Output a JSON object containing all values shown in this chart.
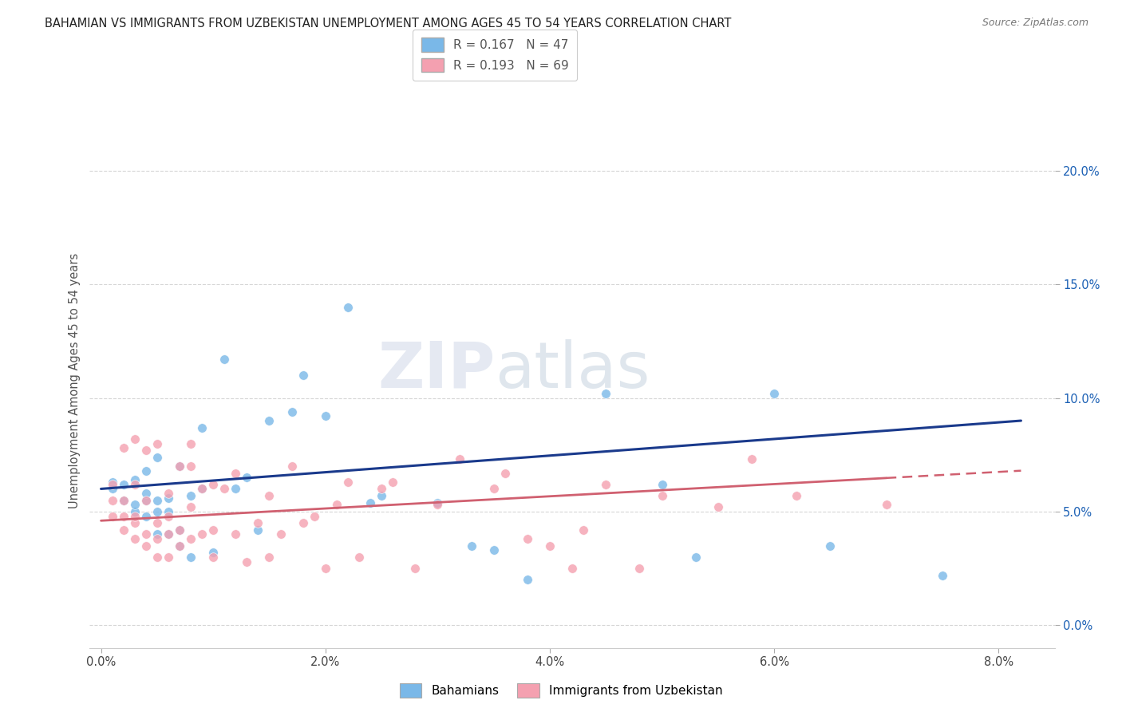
{
  "title": "BAHAMIAN VS IMMIGRANTS FROM UZBEKISTAN UNEMPLOYMENT AMONG AGES 45 TO 54 YEARS CORRELATION CHART",
  "source": "Source: ZipAtlas.com",
  "xlabel_ticks": [
    "0.0%",
    "2.0%",
    "4.0%",
    "6.0%",
    "8.0%"
  ],
  "xlabel_vals": [
    0.0,
    0.02,
    0.04,
    0.06,
    0.08
  ],
  "ylabel": "Unemployment Among Ages 45 to 54 years",
  "ylabel_ticks": [
    "0.0%",
    "5.0%",
    "10.0%",
    "15.0%",
    "20.0%"
  ],
  "ylabel_vals": [
    0.0,
    0.05,
    0.1,
    0.15,
    0.2
  ],
  "xlim": [
    -0.001,
    0.085
  ],
  "ylim": [
    -0.01,
    0.225
  ],
  "blue_R": 0.167,
  "blue_N": 47,
  "pink_R": 0.193,
  "pink_N": 69,
  "blue_color": "#7ab8e8",
  "pink_color": "#f4a0b0",
  "blue_line_color": "#1a3a8c",
  "pink_line_color": "#d06070",
  "watermark_zip": "ZIP",
  "watermark_atlas": "atlas",
  "legend_label_blue": "Bahamians",
  "legend_label_pink": "Immigrants from Uzbekistan",
  "blue_x": [
    0.001,
    0.001,
    0.002,
    0.002,
    0.003,
    0.003,
    0.003,
    0.004,
    0.004,
    0.004,
    0.004,
    0.005,
    0.005,
    0.005,
    0.005,
    0.006,
    0.006,
    0.006,
    0.007,
    0.007,
    0.007,
    0.008,
    0.008,
    0.009,
    0.009,
    0.01,
    0.011,
    0.012,
    0.013,
    0.014,
    0.015,
    0.017,
    0.018,
    0.02,
    0.022,
    0.024,
    0.025,
    0.03,
    0.033,
    0.035,
    0.038,
    0.045,
    0.05,
    0.053,
    0.06,
    0.065,
    0.075
  ],
  "blue_y": [
    0.063,
    0.06,
    0.055,
    0.062,
    0.05,
    0.053,
    0.064,
    0.048,
    0.055,
    0.058,
    0.068,
    0.04,
    0.05,
    0.055,
    0.074,
    0.04,
    0.05,
    0.056,
    0.035,
    0.042,
    0.07,
    0.03,
    0.057,
    0.06,
    0.087,
    0.032,
    0.117,
    0.06,
    0.065,
    0.042,
    0.09,
    0.094,
    0.11,
    0.092,
    0.14,
    0.054,
    0.057,
    0.054,
    0.035,
    0.033,
    0.02,
    0.102,
    0.062,
    0.03,
    0.102,
    0.035,
    0.022
  ],
  "pink_x": [
    0.001,
    0.001,
    0.001,
    0.002,
    0.002,
    0.002,
    0.002,
    0.003,
    0.003,
    0.003,
    0.003,
    0.003,
    0.004,
    0.004,
    0.004,
    0.004,
    0.005,
    0.005,
    0.005,
    0.005,
    0.006,
    0.006,
    0.006,
    0.006,
    0.007,
    0.007,
    0.007,
    0.008,
    0.008,
    0.008,
    0.008,
    0.009,
    0.009,
    0.01,
    0.01,
    0.01,
    0.011,
    0.012,
    0.012,
    0.013,
    0.014,
    0.015,
    0.015,
    0.016,
    0.017,
    0.018,
    0.019,
    0.02,
    0.021,
    0.022,
    0.023,
    0.025,
    0.026,
    0.028,
    0.03,
    0.032,
    0.035,
    0.036,
    0.038,
    0.04,
    0.042,
    0.043,
    0.045,
    0.048,
    0.05,
    0.055,
    0.058,
    0.062,
    0.07
  ],
  "pink_y": [
    0.048,
    0.055,
    0.062,
    0.042,
    0.048,
    0.055,
    0.078,
    0.038,
    0.045,
    0.048,
    0.062,
    0.082,
    0.035,
    0.04,
    0.055,
    0.077,
    0.03,
    0.038,
    0.045,
    0.08,
    0.03,
    0.04,
    0.048,
    0.058,
    0.035,
    0.042,
    0.07,
    0.038,
    0.052,
    0.07,
    0.08,
    0.04,
    0.06,
    0.03,
    0.042,
    0.062,
    0.06,
    0.04,
    0.067,
    0.028,
    0.045,
    0.03,
    0.057,
    0.04,
    0.07,
    0.045,
    0.048,
    0.025,
    0.053,
    0.063,
    0.03,
    0.06,
    0.063,
    0.025,
    0.053,
    0.073,
    0.06,
    0.067,
    0.038,
    0.035,
    0.025,
    0.042,
    0.062,
    0.025,
    0.057,
    0.052,
    0.073,
    0.057,
    0.053
  ]
}
